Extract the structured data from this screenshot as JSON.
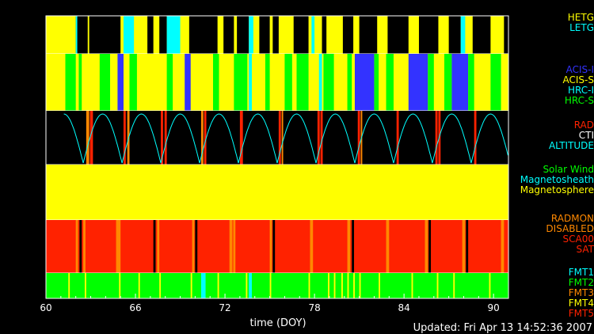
{
  "chart_data": {
    "type": "timeline",
    "xlabel": "time (DOY)",
    "xlim": [
      60,
      91
    ],
    "xticks": [
      60,
      66,
      72,
      78,
      84,
      90
    ],
    "updated": "Updated: Fri Apr 13 14:52:36 2007",
    "colors": {
      "yellow": "#ffff00",
      "black": "#000000",
      "cyan": "#00ffff",
      "green": "#00ff00",
      "blue": "#3333ff",
      "red": "#ff2200",
      "orange": "#ff8800",
      "white": "#ffffff"
    },
    "rows": [
      {
        "name": "grating",
        "legend": [
          {
            "label": "HETG",
            "color": "#ffff00"
          },
          {
            "label": "LETG",
            "color": "#00ffff"
          }
        ],
        "base": "yellow",
        "segments": [
          {
            "start": 62.0,
            "end": 62.8,
            "color": "black"
          },
          {
            "start": 62.0,
            "end": 62.1,
            "color": "cyan"
          },
          {
            "start": 62.9,
            "end": 65.0,
            "color": "black"
          },
          {
            "start": 65.2,
            "end": 65.9,
            "color": "cyan"
          },
          {
            "start": 66.8,
            "end": 67.2,
            "color": "black"
          },
          {
            "start": 67.6,
            "end": 68.1,
            "color": "black"
          },
          {
            "start": 68.1,
            "end": 69.0,
            "color": "cyan"
          },
          {
            "start": 69.6,
            "end": 71.5,
            "color": "black"
          },
          {
            "start": 71.9,
            "end": 72.6,
            "color": "black"
          },
          {
            "start": 72.8,
            "end": 73.6,
            "color": "black"
          },
          {
            "start": 73.6,
            "end": 73.9,
            "color": "cyan"
          },
          {
            "start": 74.3,
            "end": 75.0,
            "color": "black"
          },
          {
            "start": 75.2,
            "end": 75.6,
            "color": "black"
          },
          {
            "start": 76.6,
            "end": 77.6,
            "color": "black"
          },
          {
            "start": 77.8,
            "end": 78.0,
            "color": "cyan"
          },
          {
            "start": 78.5,
            "end": 78.8,
            "color": "black"
          },
          {
            "start": 79.9,
            "end": 80.6,
            "color": "black"
          },
          {
            "start": 81.0,
            "end": 82.2,
            "color": "black"
          },
          {
            "start": 82.9,
            "end": 84.3,
            "color": "black"
          },
          {
            "start": 85.0,
            "end": 86.3,
            "color": "black"
          },
          {
            "start": 87.0,
            "end": 87.8,
            "color": "black"
          },
          {
            "start": 87.8,
            "end": 88.1,
            "color": "cyan"
          },
          {
            "start": 88.6,
            "end": 89.8,
            "color": "black"
          },
          {
            "start": 90.7,
            "end": 91.0,
            "color": "black"
          }
        ]
      },
      {
        "name": "instrument",
        "legend": [
          {
            "label": "ACIS-I",
            "color": "#3333ff"
          },
          {
            "label": "ACIS-S",
            "color": "#ffff00"
          },
          {
            "label": "HRC-I",
            "color": "#00ffff"
          },
          {
            "label": "HRC-S",
            "color": "#00ff00"
          }
        ],
        "base": "yellow",
        "segments": [
          {
            "start": 61.3,
            "end": 62.0,
            "color": "green"
          },
          {
            "start": 62.2,
            "end": 62.4,
            "color": "green"
          },
          {
            "start": 63.6,
            "end": 64.3,
            "color": "green"
          },
          {
            "start": 64.8,
            "end": 65.2,
            "color": "blue"
          },
          {
            "start": 65.6,
            "end": 66.1,
            "color": "green"
          },
          {
            "start": 68.1,
            "end": 68.5,
            "color": "green"
          },
          {
            "start": 69.3,
            "end": 69.7,
            "color": "blue"
          },
          {
            "start": 71.2,
            "end": 71.6,
            "color": "green"
          },
          {
            "start": 72.6,
            "end": 73.5,
            "color": "green"
          },
          {
            "start": 73.6,
            "end": 73.8,
            "color": "cyan"
          },
          {
            "start": 74.7,
            "end": 75.0,
            "color": "green"
          },
          {
            "start": 76.0,
            "end": 76.5,
            "color": "green"
          },
          {
            "start": 76.8,
            "end": 77.6,
            "color": "green"
          },
          {
            "start": 78.3,
            "end": 78.5,
            "color": "cyan"
          },
          {
            "start": 78.6,
            "end": 79.3,
            "color": "green"
          },
          {
            "start": 80.2,
            "end": 80.5,
            "color": "green"
          },
          {
            "start": 80.7,
            "end": 82.0,
            "color": "blue"
          },
          {
            "start": 82.0,
            "end": 82.3,
            "color": "green"
          },
          {
            "start": 82.8,
            "end": 83.3,
            "color": "green"
          },
          {
            "start": 84.3,
            "end": 85.6,
            "color": "blue"
          },
          {
            "start": 85.6,
            "end": 86.0,
            "color": "green"
          },
          {
            "start": 86.7,
            "end": 87.2,
            "color": "green"
          },
          {
            "start": 87.2,
            "end": 88.3,
            "color": "blue"
          },
          {
            "start": 88.3,
            "end": 88.7,
            "color": "green"
          },
          {
            "start": 89.8,
            "end": 90.5,
            "color": "green"
          }
        ]
      },
      {
        "name": "radiation",
        "legend": [
          {
            "label": "RAD",
            "color": "#ff2200"
          },
          {
            "label": "CTI",
            "color": "#ffffff"
          },
          {
            "label": "ALTITUDE",
            "color": "#00ffff"
          }
        ],
        "base": "black",
        "segments": [
          {
            "start": 62.7,
            "end": 62.9,
            "color": "orange"
          },
          {
            "start": 62.95,
            "end": 63.15,
            "color": "red"
          },
          {
            "start": 65.2,
            "end": 65.35,
            "color": "red"
          },
          {
            "start": 65.45,
            "end": 65.6,
            "color": "orange"
          },
          {
            "start": 67.7,
            "end": 67.85,
            "color": "red"
          },
          {
            "start": 67.95,
            "end": 68.1,
            "color": "red"
          },
          {
            "start": 70.4,
            "end": 70.55,
            "color": "orange"
          },
          {
            "start": 70.6,
            "end": 70.75,
            "color": "red"
          },
          {
            "start": 73.0,
            "end": 73.2,
            "color": "red"
          },
          {
            "start": 75.6,
            "end": 75.75,
            "color": "red"
          },
          {
            "start": 75.8,
            "end": 75.9,
            "color": "orange"
          },
          {
            "start": 78.2,
            "end": 78.35,
            "color": "red"
          },
          {
            "start": 78.4,
            "end": 78.55,
            "color": "red"
          },
          {
            "start": 80.9,
            "end": 81.05,
            "color": "red"
          },
          {
            "start": 81.1,
            "end": 81.2,
            "color": "orange"
          },
          {
            "start": 83.5,
            "end": 83.65,
            "color": "red"
          },
          {
            "start": 86.1,
            "end": 86.25,
            "color": "red"
          },
          {
            "start": 86.3,
            "end": 86.45,
            "color": "red"
          },
          {
            "start": 88.7,
            "end": 88.85,
            "color": "red"
          }
        ],
        "altitude_minima_doy": [
          62.5,
          65.1,
          67.7,
          70.3,
          72.9,
          75.5,
          78.1,
          80.7,
          83.3,
          85.9,
          88.5,
          91.1
        ]
      },
      {
        "name": "region",
        "legend": [
          {
            "label": "Solar Wind",
            "color": "#00ff00"
          },
          {
            "label": "Magnetosheath",
            "color": "#00ffff"
          },
          {
            "label": "Magnetosphere",
            "color": "#ffff00"
          }
        ],
        "base": "yellow",
        "segments": []
      },
      {
        "name": "radmon",
        "legend": [
          {
            "label": "RADMON",
            "color": "#ff8800"
          },
          {
            "label": "DISABLED",
            "color": "#ff8800"
          },
          {
            "label": "SCA00",
            "color": "#ff2200"
          },
          {
            "label": "SAT",
            "color": "#ff2200"
          }
        ],
        "base": "red",
        "segments": [
          {
            "start": 62.0,
            "end": 62.15,
            "color": "orange"
          },
          {
            "start": 62.25,
            "end": 62.4,
            "color": "black"
          },
          {
            "start": 62.5,
            "end": 62.65,
            "color": "orange"
          },
          {
            "start": 64.7,
            "end": 65.0,
            "color": "orange"
          },
          {
            "start": 67.2,
            "end": 67.35,
            "color": "black"
          },
          {
            "start": 67.45,
            "end": 67.6,
            "color": "orange"
          },
          {
            "start": 69.8,
            "end": 69.95,
            "color": "orange"
          },
          {
            "start": 70.0,
            "end": 70.15,
            "color": "black"
          },
          {
            "start": 72.3,
            "end": 72.5,
            "color": "orange"
          },
          {
            "start": 72.55,
            "end": 72.7,
            "color": "orange"
          },
          {
            "start": 75.0,
            "end": 75.15,
            "color": "orange"
          },
          {
            "start": 75.2,
            "end": 75.35,
            "color": "black"
          },
          {
            "start": 77.7,
            "end": 77.9,
            "color": "orange"
          },
          {
            "start": 80.2,
            "end": 80.4,
            "color": "orange"
          },
          {
            "start": 80.5,
            "end": 80.65,
            "color": "black"
          },
          {
            "start": 82.8,
            "end": 83.0,
            "color": "orange"
          },
          {
            "start": 85.4,
            "end": 85.6,
            "color": "orange"
          },
          {
            "start": 85.65,
            "end": 85.8,
            "color": "black"
          },
          {
            "start": 87.9,
            "end": 88.1,
            "color": "orange"
          },
          {
            "start": 88.15,
            "end": 88.3,
            "color": "black"
          },
          {
            "start": 90.5,
            "end": 90.7,
            "color": "orange"
          }
        ]
      },
      {
        "name": "format",
        "legend": [
          {
            "label": "FMT1",
            "color": "#00ffff"
          },
          {
            "label": "FMT2",
            "color": "#00ff00"
          },
          {
            "label": "FMT3",
            "color": "#ff8800"
          },
          {
            "label": "FMT4",
            "color": "#ffff00"
          },
          {
            "label": "FMT5",
            "color": "#ff2200"
          }
        ],
        "base": "green",
        "segments": [
          {
            "start": 61.5,
            "end": 61.6,
            "color": "yellow"
          },
          {
            "start": 62.6,
            "end": 62.7,
            "color": "yellow"
          },
          {
            "start": 64.9,
            "end": 65.0,
            "color": "yellow"
          },
          {
            "start": 66.2,
            "end": 66.3,
            "color": "yellow"
          },
          {
            "start": 67.6,
            "end": 67.7,
            "color": "yellow"
          },
          {
            "start": 69.7,
            "end": 69.8,
            "color": "yellow"
          },
          {
            "start": 70.4,
            "end": 70.7,
            "color": "cyan"
          },
          {
            "start": 71.5,
            "end": 71.6,
            "color": "yellow"
          },
          {
            "start": 73.4,
            "end": 73.5,
            "color": "yellow"
          },
          {
            "start": 73.6,
            "end": 73.8,
            "color": "cyan"
          },
          {
            "start": 75.0,
            "end": 75.1,
            "color": "yellow"
          },
          {
            "start": 77.6,
            "end": 77.7,
            "color": "yellow"
          },
          {
            "start": 78.9,
            "end": 79.0,
            "color": "yellow"
          },
          {
            "start": 79.3,
            "end": 79.4,
            "color": "yellow"
          },
          {
            "start": 79.8,
            "end": 79.9,
            "color": "yellow"
          },
          {
            "start": 80.2,
            "end": 80.3,
            "color": "yellow"
          },
          {
            "start": 80.6,
            "end": 80.7,
            "color": "yellow"
          },
          {
            "start": 81.0,
            "end": 81.1,
            "color": "yellow"
          },
          {
            "start": 82.3,
            "end": 82.4,
            "color": "yellow"
          },
          {
            "start": 84.5,
            "end": 84.6,
            "color": "yellow"
          },
          {
            "start": 86.2,
            "end": 86.3,
            "color": "yellow"
          },
          {
            "start": 87.3,
            "end": 87.4,
            "color": "yellow"
          },
          {
            "start": 89.7,
            "end": 89.8,
            "color": "yellow"
          }
        ]
      }
    ]
  }
}
